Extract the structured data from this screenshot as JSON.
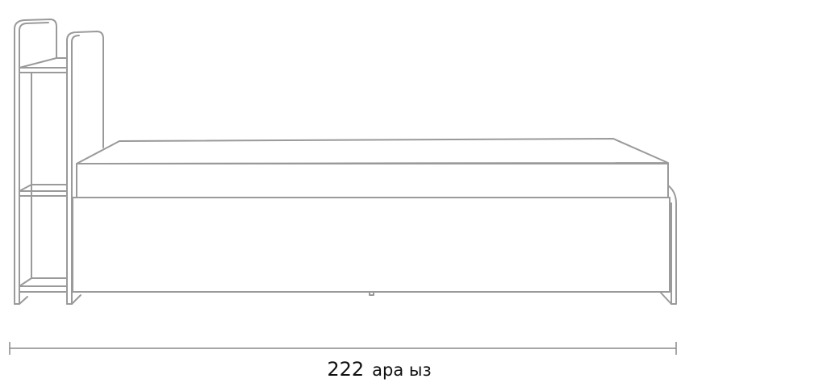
{
  "dimension": {
    "value": "222",
    "unit": "ара ыз"
  },
  "colors": {
    "line": "#9a9a9a",
    "text": "#111111"
  }
}
